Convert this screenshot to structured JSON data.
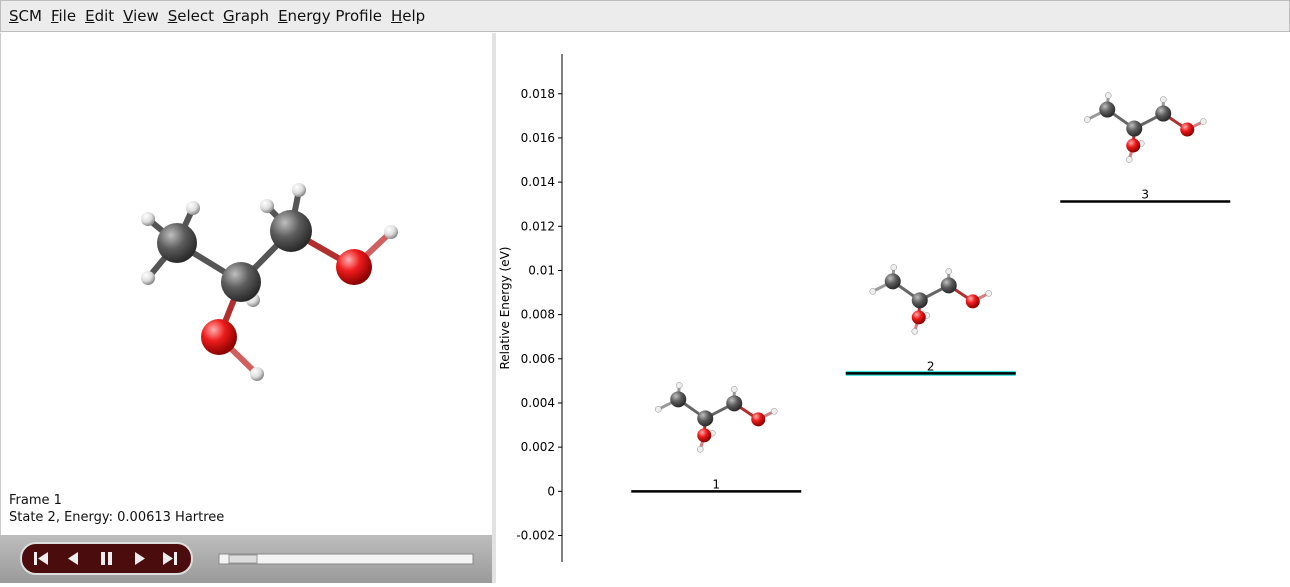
{
  "menu": [
    "SCM",
    "File",
    "Edit",
    "View",
    "Select",
    "Graph",
    "Energy Profile",
    "Help"
  ],
  "viewer": {
    "frame": "Frame 1",
    "state": "State 2, Energy: 0.00613 Hartree"
  },
  "chart_data": {
    "type": "level",
    "y_label": "Relative Energy (eV)",
    "categories": [
      "1",
      "2",
      "3"
    ],
    "values": [
      0,
      0.00534,
      0.01312
    ],
    "color": "#000000",
    "highlight_color": "#40e0e0",
    "selected_index": 1,
    "ylim": [
      -0.0032,
      0.0198
    ],
    "yticks": [
      -0.002,
      0,
      0.002,
      0.004,
      0.006,
      0.008,
      0.01,
      0.012,
      0.014,
      0.016,
      0.018
    ]
  }
}
